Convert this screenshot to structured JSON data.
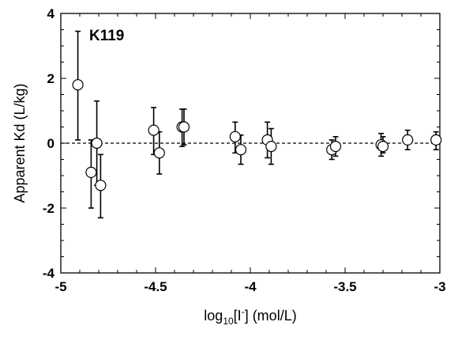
{
  "chart_data": {
    "type": "scatter",
    "title": "",
    "annotation": "K119",
    "xlabel": {
      "prefix": "log",
      "sub": "10",
      "mid": "[I",
      "sup": "-",
      "suffix": "] (mol/L)"
    },
    "ylabel": "Apparent Kd (L/kg)",
    "xlim": [
      -5,
      -3
    ],
    "ylim": [
      -4,
      4
    ],
    "x_ticks": [
      -5,
      -4.5,
      -4,
      -3.5,
      -3
    ],
    "x_tick_labels": [
      "-5",
      "-4.5",
      "-4",
      "-3.5",
      "-3"
    ],
    "y_ticks": [
      -4,
      -2,
      0,
      2,
      4
    ],
    "y_tick_labels": [
      "-4",
      "-2",
      "0",
      "2",
      "4"
    ],
    "reference_line_y": 0,
    "grid": false,
    "points": [
      {
        "x": -4.91,
        "y": 1.8,
        "err_low": 0.1,
        "err_high": 3.45
      },
      {
        "x": -4.84,
        "y": -0.9,
        "err_low": -2.0,
        "err_high": 0.1
      },
      {
        "x": -4.81,
        "y": 0.0,
        "err_low": -1.3,
        "err_high": 1.3
      },
      {
        "x": -4.79,
        "y": -1.3,
        "err_low": -2.3,
        "err_high": -0.35
      },
      {
        "x": -4.51,
        "y": 0.4,
        "err_low": -0.35,
        "err_high": 1.1
      },
      {
        "x": -4.48,
        "y": -0.3,
        "err_low": -0.95,
        "err_high": 0.35
      },
      {
        "x": -4.36,
        "y": 0.5,
        "err_low": -0.1,
        "err_high": 1.05
      },
      {
        "x": -4.35,
        "y": 0.5,
        "err_low": -0.05,
        "err_high": 1.05
      },
      {
        "x": -4.08,
        "y": 0.2,
        "err_low": -0.3,
        "err_high": 0.65
      },
      {
        "x": -4.05,
        "y": -0.2,
        "err_low": -0.65,
        "err_high": 0.25
      },
      {
        "x": -3.91,
        "y": 0.1,
        "err_low": -0.45,
        "err_high": 0.65
      },
      {
        "x": -3.89,
        "y": -0.1,
        "err_low": -0.65,
        "err_high": 0.45
      },
      {
        "x": -3.57,
        "y": -0.2,
        "err_low": -0.5,
        "err_high": 0.1
      },
      {
        "x": -3.55,
        "y": -0.1,
        "err_low": -0.4,
        "err_high": 0.2
      },
      {
        "x": -3.31,
        "y": -0.05,
        "err_low": -0.4,
        "err_high": 0.3
      },
      {
        "x": -3.3,
        "y": -0.1,
        "err_low": -0.3,
        "err_high": 0.2
      },
      {
        "x": -3.17,
        "y": 0.1,
        "err_low": -0.2,
        "err_high": 0.4
      },
      {
        "x": -3.02,
        "y": 0.1,
        "err_low": -0.2,
        "err_high": 0.35
      }
    ],
    "colors": {
      "axis": "#000000",
      "marker_fill": "#ffffff",
      "marker_stroke": "#000000"
    }
  }
}
